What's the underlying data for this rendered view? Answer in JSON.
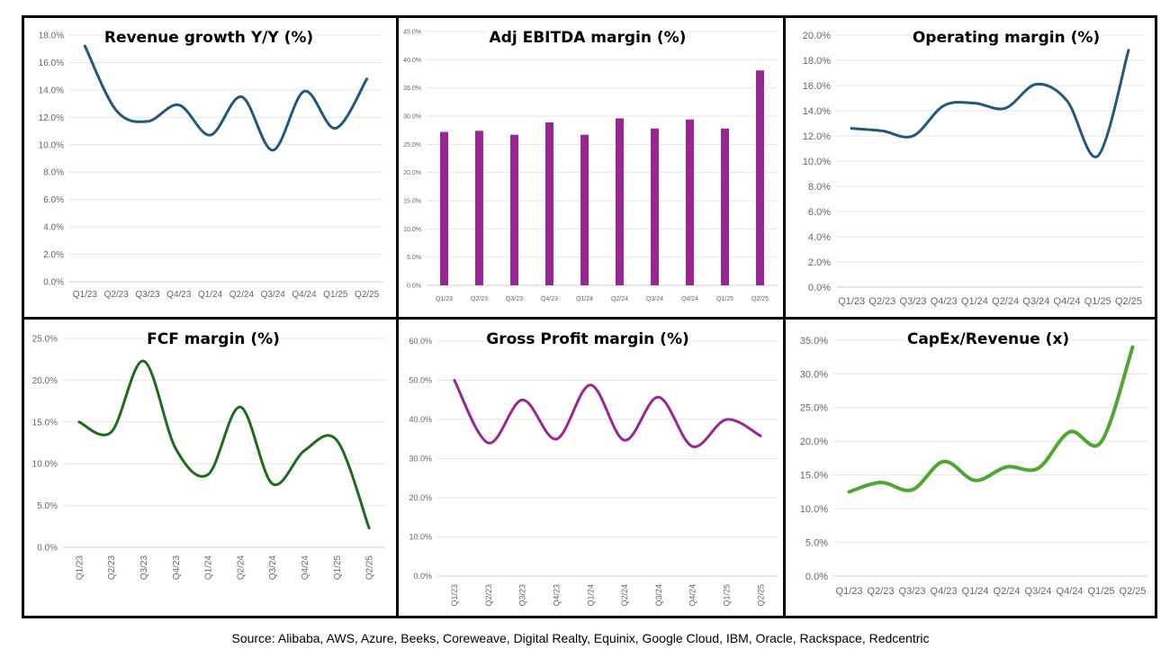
{
  "source": "Source: Alibaba, AWS, Azure, Beeks, Coreweave, Digital Realty, Equinix, Google Cloud, IBM, Oracle, Rackspace, Redcentric",
  "chart_data": [
    {
      "type": "line",
      "title": "Revenue growth Y/Y (%)",
      "color": "#1f5a7a",
      "categories": [
        "Q1/23",
        "Q2/23",
        "Q3/23",
        "Q4/23",
        "Q1/24",
        "Q2/24",
        "Q3/24",
        "Q4/24",
        "Q1/25",
        "Q2/25"
      ],
      "values": [
        17.2,
        12.5,
        11.7,
        12.9,
        10.7,
        13.5,
        9.6,
        13.9,
        11.2,
        14.8
      ],
      "ylim": [
        0,
        18
      ],
      "ystep": 2,
      "grid": true,
      "xlabel": "",
      "ylabel": ""
    },
    {
      "type": "bar",
      "title": "Adj EBITDA margin (%)",
      "color": "#9b2592",
      "categories": [
        "Q1/23",
        "Q2/23",
        "Q3/23",
        "Q4/23",
        "Q1/24",
        "Q2/24",
        "Q3/24",
        "Q4/24",
        "Q1/25",
        "Q2/25"
      ],
      "values": [
        27.2,
        27.4,
        26.7,
        28.9,
        26.7,
        29.6,
        27.8,
        29.4,
        27.8,
        38.1
      ],
      "ylim": [
        0,
        45
      ],
      "ystep": 5,
      "grid": true,
      "xlabel": "",
      "ylabel": ""
    },
    {
      "type": "line",
      "title": "Operating margin (%)",
      "color": "#1f5a7a",
      "categories": [
        "Q1/23",
        "Q2/23",
        "Q3/23",
        "Q4/23",
        "Q1/24",
        "Q2/24",
        "Q3/24",
        "Q4/24",
        "Q1/25",
        "Q2/25"
      ],
      "values": [
        12.6,
        12.4,
        12.0,
        14.4,
        14.6,
        14.2,
        16.1,
        14.8,
        10.4,
        18.8
      ],
      "ylim": [
        0,
        20
      ],
      "ystep": 2,
      "grid": true,
      "xlabel": "",
      "ylabel": ""
    },
    {
      "type": "line",
      "title": "FCF margin (%)",
      "color": "#1e6b1e",
      "categories": [
        "Q1/23",
        "Q2/23",
        "Q3/23",
        "Q4/23",
        "Q1/24",
        "Q2/24",
        "Q3/24",
        "Q4/24",
        "Q1/25",
        "Q2/25"
      ],
      "values": [
        15.0,
        13.8,
        22.3,
        11.8,
        8.7,
        16.8,
        7.6,
        11.6,
        12.8,
        2.3
      ],
      "ylim": [
        0,
        25
      ],
      "ystep": 5,
      "grid": true,
      "xlabel": "",
      "ylabel": ""
    },
    {
      "type": "line",
      "title": "Gross Profit margin (%)",
      "color": "#9b2592",
      "categories": [
        "Q1/23",
        "Q2/23",
        "Q3/23",
        "Q4/23",
        "Q1/24",
        "Q2/24",
        "Q3/24",
        "Q4/24",
        "Q1/25",
        "Q2/25"
      ],
      "values": [
        50.0,
        34.0,
        45.0,
        35.0,
        48.8,
        34.7,
        45.7,
        33.1,
        40.0,
        35.8
      ],
      "ylim": [
        0,
        60
      ],
      "ystep": 10,
      "grid": true,
      "xlabel": "",
      "ylabel": ""
    },
    {
      "type": "line",
      "title": "CapEx/Revenue (x)",
      "color": "#4ea72e",
      "categories": [
        "Q1/23",
        "Q2/23",
        "Q3/23",
        "Q4/23",
        "Q1/24",
        "Q2/24",
        "Q3/24",
        "Q4/24",
        "Q1/25",
        "Q2/25"
      ],
      "values": [
        12.5,
        13.9,
        12.8,
        17.0,
        14.2,
        16.2,
        16.0,
        21.4,
        19.9,
        34.0
      ],
      "ylim": [
        0,
        35
      ],
      "ystep": 5,
      "grid": true,
      "xlabel": "",
      "ylabel": ""
    }
  ]
}
